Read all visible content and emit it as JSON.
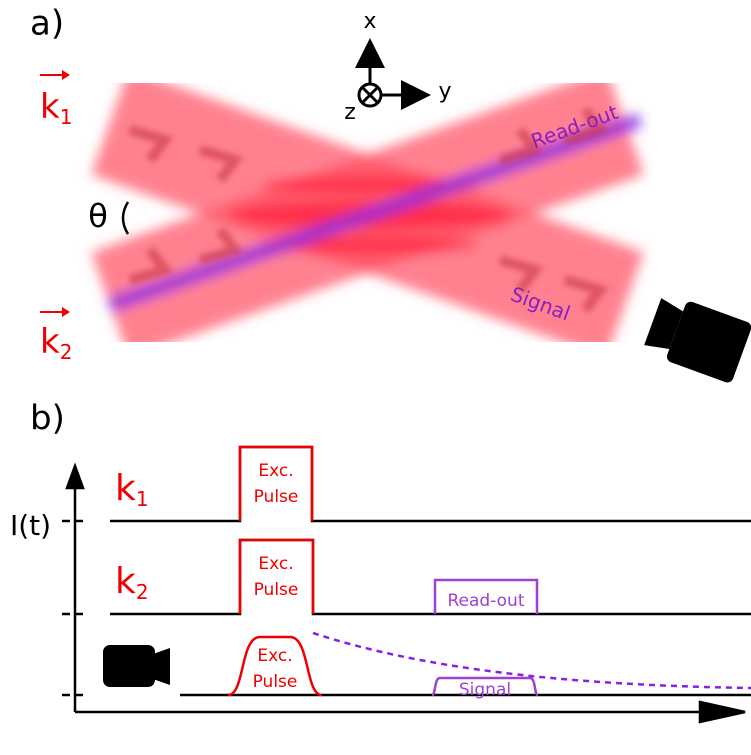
{
  "panel_a": {
    "label": "a)",
    "axes": {
      "x": "x",
      "y": "y",
      "z": "z"
    },
    "beams": [
      {
        "symbol": "k",
        "subscript": "1"
      },
      {
        "symbol": "k",
        "subscript": "2"
      }
    ],
    "angle": "θ",
    "readout": "Read-out",
    "signal": "Signal"
  },
  "panel_b": {
    "label": "b)",
    "y_axis": "I(t)",
    "rows": [
      {
        "symbol": "k",
        "subscript": "1",
        "pulse": [
          "Exc.",
          "Pulse"
        ]
      },
      {
        "symbol": "k",
        "subscript": "2",
        "pulse": [
          "Exc.",
          "Pulse"
        ],
        "readout": "Read-out"
      },
      {
        "pulse": [
          "Exc.",
          "Pulse"
        ],
        "signal": "Signal"
      }
    ]
  }
}
